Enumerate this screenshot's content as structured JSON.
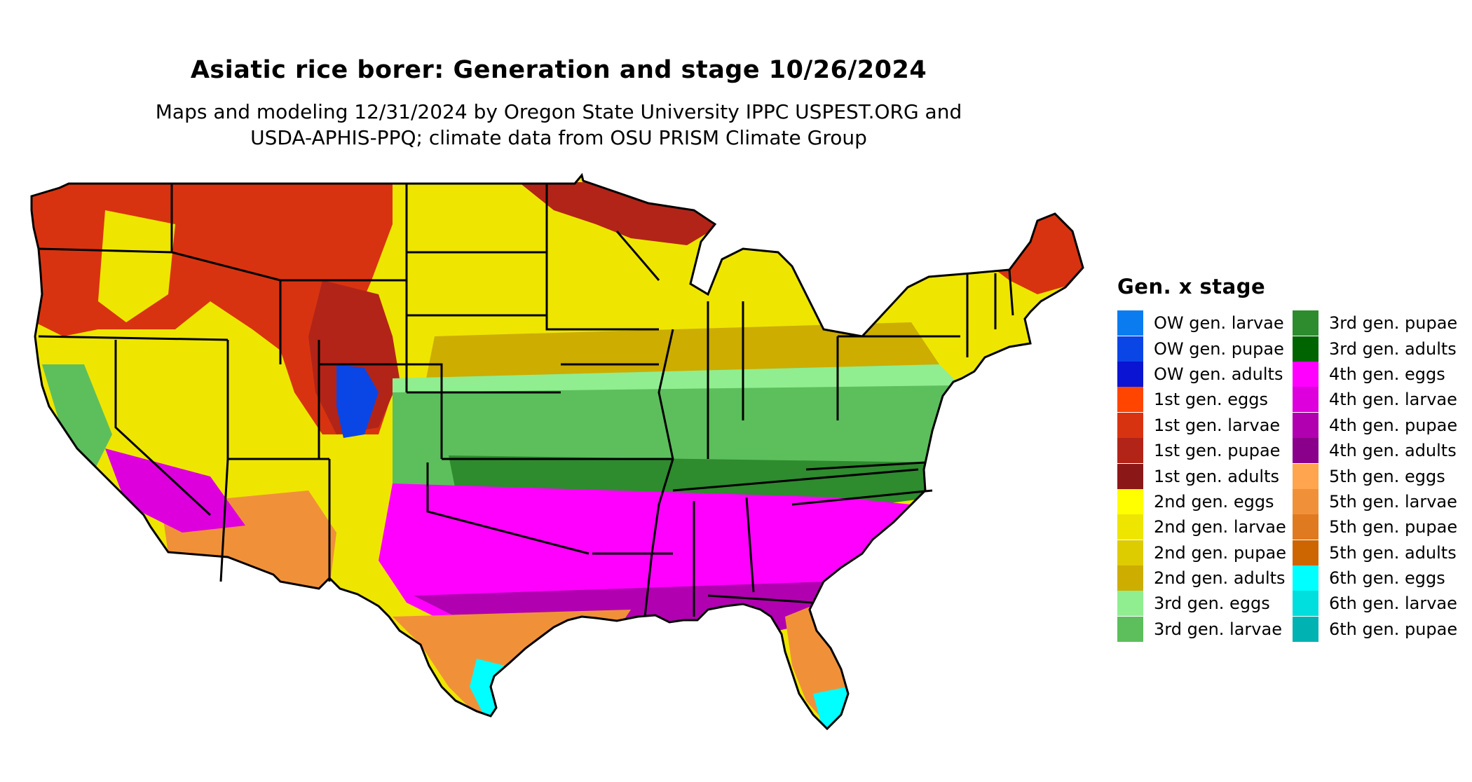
{
  "header": {
    "title": "Asiatic rice borer: Generation and stage 10/26/2024",
    "subtitle_line1": "Maps and modeling 12/31/2024 by Oregon State University IPPC USPEST.ORG and",
    "subtitle_line2": "USDA-APHIS-PPQ; climate data from OSU PRISM Climate Group"
  },
  "legend": {
    "title": "Gen. x stage",
    "columns": [
      [
        {
          "label": "OW gen. larvae",
          "color": "#0A7CF0"
        },
        {
          "label": "OW gen. pupae",
          "color": "#0A46E6"
        },
        {
          "label": "OW gen. adults",
          "color": "#0A14D2"
        },
        {
          "label": "1st gen. eggs",
          "color": "#FF4500"
        },
        {
          "label": "1st gen. larvae",
          "color": "#D83310"
        },
        {
          "label": "1st gen. pupae",
          "color": "#B22418"
        },
        {
          "label": "1st gen. adults",
          "color": "#8B1717"
        },
        {
          "label": "2nd gen. eggs",
          "color": "#FFFF00"
        },
        {
          "label": "2nd gen. larvae",
          "color": "#EEE600"
        },
        {
          "label": "2nd gen. pupae",
          "color": "#DDCC00"
        },
        {
          "label": "2nd gen. adults",
          "color": "#CCAD00"
        },
        {
          "label": "3rd gen. eggs",
          "color": "#90EE90"
        },
        {
          "label": "3rd gen. larvae",
          "color": "#5CBF5C"
        }
      ],
      [
        {
          "label": "3rd gen. pupae",
          "color": "#2E8B2E"
        },
        {
          "label": "3rd gen. adults",
          "color": "#006400"
        },
        {
          "label": "4th gen. eggs",
          "color": "#FF00FF"
        },
        {
          "label": "4th gen. larvae",
          "color": "#DD00DD"
        },
        {
          "label": "4th gen. pupae",
          "color": "#B000B0"
        },
        {
          "label": "4th gen. adults",
          "color": "#8B008B"
        },
        {
          "label": "5th gen. eggs",
          "color": "#FFA54F"
        },
        {
          "label": "5th gen. larvae",
          "color": "#F0913A"
        },
        {
          "label": "5th gen. pupae",
          "color": "#E07A20"
        },
        {
          "label": "5th gen. adults",
          "color": "#CD6600"
        },
        {
          "label": "6th gen. eggs",
          "color": "#00FFFF"
        },
        {
          "label": "6th gen. larvae",
          "color": "#00DDDD"
        },
        {
          "label": "6th gen. pupae",
          "color": "#00B2B2"
        }
      ]
    ]
  },
  "map": {
    "region": "contiguous-united-states",
    "zones": [
      {
        "name": "zone-pacific-northwest",
        "stage": "1st gen. larvae",
        "color": "#D83310"
      },
      {
        "name": "zone-northern-rockies",
        "stage": "1st gen. larvae",
        "color": "#D83310"
      },
      {
        "name": "zone-great-basin",
        "stage": "2nd gen. larvae",
        "color": "#EEE600"
      },
      {
        "name": "zone-rocky-highlands",
        "stage": "1st gen. pupae",
        "color": "#B22418"
      },
      {
        "name": "zone-northern-plains",
        "stage": "2nd gen. larvae",
        "color": "#EEE600"
      },
      {
        "name": "zone-great-lakes-north",
        "stage": "1st gen. pupae",
        "color": "#B22418"
      },
      {
        "name": "zone-midwest-northeast",
        "stage": "2nd gen. larvae",
        "color": "#EEE600"
      },
      {
        "name": "zone-new-england-north",
        "stage": "1st gen. larvae",
        "color": "#D83310"
      },
      {
        "name": "zone-corn-belt-south",
        "stage": "2nd gen. adults",
        "color": "#CCAD00"
      },
      {
        "name": "zone-central-band",
        "stage": "3rd gen. eggs",
        "color": "#90EE90"
      },
      {
        "name": "zone-mid-south",
        "stage": "3rd gen. larvae",
        "color": "#5CBF5C"
      },
      {
        "name": "zone-tennessee-band",
        "stage": "3rd gen. pupae",
        "color": "#2E8B2E"
      },
      {
        "name": "zone-deep-south",
        "stage": "4th gen. eggs",
        "color": "#FF00FF"
      },
      {
        "name": "zone-gulf-coast",
        "stage": "4th gen. pupae",
        "color": "#B000B0"
      },
      {
        "name": "zone-south-texas",
        "stage": "5th gen. larvae",
        "color": "#F0913A"
      },
      {
        "name": "zone-southwest-desert",
        "stage": "5th gen. larvae",
        "color": "#F0913A"
      },
      {
        "name": "zone-california-valley",
        "stage": "3rd gen. larvae",
        "color": "#5CBF5C"
      },
      {
        "name": "zone-florida-peninsula",
        "stage": "5th gen. larvae",
        "color": "#F0913A"
      },
      {
        "name": "zone-south-florida-tip",
        "stage": "6th gen. eggs",
        "color": "#00FFFF"
      },
      {
        "name": "zone-texas-coastal-tip",
        "stage": "6th gen. eggs",
        "color": "#00FFFF"
      },
      {
        "name": "zone-colorado-peaks",
        "stage": "OW gen. pupae",
        "color": "#0A46E6"
      }
    ]
  }
}
